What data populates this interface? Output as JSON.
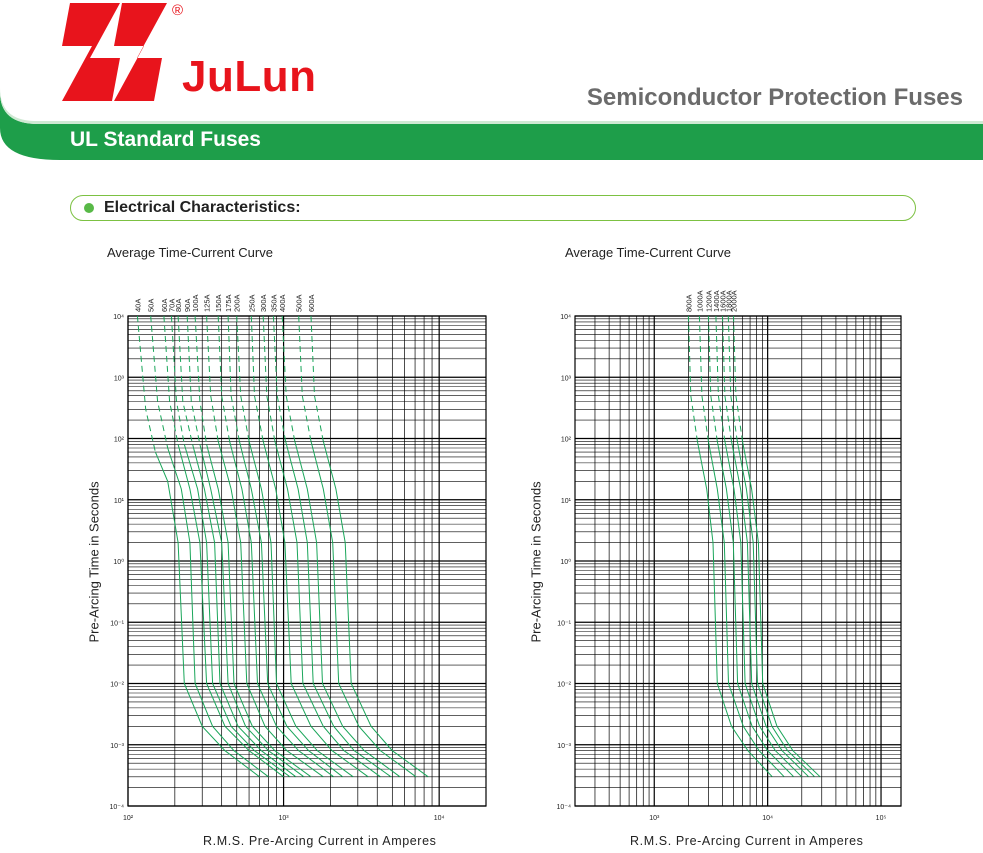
{
  "header": {
    "brand": "JuLun",
    "registered": "®",
    "title": "Semiconductor Protection Fuses",
    "section": "UL Standard Fuses",
    "colors": {
      "brand_red": "#e8141c",
      "band_green": "#1e9e4a",
      "pill_green": "#7cc142"
    }
  },
  "characteristics": {
    "label": "Electrical Characteristics:"
  },
  "chart_data": [
    {
      "type": "line",
      "title": "Average Time-Current Curve",
      "xlabel": "R.M.S. Pre-Arcing Current in Amperes",
      "ylabel": "Pre-Arcing Time in Seconds",
      "xscale": "log",
      "yscale": "log",
      "xlim": [
        100,
        20000
      ],
      "ylim": [
        0.0001,
        10000
      ],
      "xticks": [
        "10²",
        "10³",
        "10⁴"
      ],
      "yticks": [
        "10⁴",
        "10³",
        "10²",
        "10¹",
        "10⁰",
        "10⁻¹",
        "10⁻²",
        "10⁻³",
        "10⁻⁴"
      ],
      "grid": true,
      "curve_color": "#1aa65a",
      "series": [
        {
          "name": "40A",
          "x": [
            115,
            130,
            150,
            180,
            210,
            230,
            300,
            420,
            700
          ],
          "y": [
            10000,
            300,
            60,
            20,
            2,
            0.01,
            0.002,
            0.0008,
            0.0003
          ]
        },
        {
          "name": "50A",
          "x": [
            140,
            155,
            180,
            220,
            250,
            270,
            350,
            480,
            800
          ],
          "y": [
            10000,
            400,
            70,
            15,
            2,
            0.01,
            0.002,
            0.0008,
            0.0003
          ]
        },
        {
          "name": "60A",
          "x": [
            170,
            185,
            210,
            250,
            290,
            320,
            420,
            600,
            1000
          ],
          "y": [
            10000,
            400,
            80,
            15,
            2,
            0.01,
            0.002,
            0.0008,
            0.0003
          ]
        },
        {
          "name": "70A",
          "x": [
            190,
            205,
            230,
            280,
            320,
            350,
            460,
            650,
            1100
          ],
          "y": [
            10000,
            400,
            80,
            15,
            2,
            0.01,
            0.002,
            0.0008,
            0.0003
          ]
        },
        {
          "name": "80A",
          "x": [
            210,
            225,
            260,
            310,
            360,
            390,
            510,
            720,
            1200
          ],
          "y": [
            10000,
            400,
            80,
            15,
            2,
            0.01,
            0.002,
            0.0008,
            0.0003
          ]
        },
        {
          "name": "90A",
          "x": [
            240,
            255,
            290,
            340,
            400,
            440,
            570,
            800,
            1350
          ],
          "y": [
            10000,
            400,
            80,
            15,
            2,
            0.01,
            0.002,
            0.0008,
            0.0003
          ]
        },
        {
          "name": "100A",
          "x": [
            270,
            290,
            320,
            380,
            440,
            480,
            630,
            880,
            1500
          ],
          "y": [
            10000,
            400,
            80,
            15,
            2,
            0.01,
            0.002,
            0.0008,
            0.0003
          ]
        },
        {
          "name": "125A",
          "x": [
            320,
            340,
            380,
            460,
            530,
            580,
            760,
            1050,
            1800
          ],
          "y": [
            10000,
            500,
            90,
            15,
            2,
            0.01,
            0.002,
            0.0008,
            0.0003
          ]
        },
        {
          "name": "150A",
          "x": [
            380,
            400,
            450,
            540,
            620,
            680,
            900,
            1250,
            2100
          ],
          "y": [
            10000,
            500,
            90,
            15,
            2,
            0.01,
            0.002,
            0.0008,
            0.0003
          ]
        },
        {
          "name": "175A",
          "x": [
            440,
            460,
            520,
            620,
            720,
            790,
            1050,
            1450,
            2400
          ],
          "y": [
            10000,
            500,
            90,
            15,
            2,
            0.01,
            0.002,
            0.0008,
            0.0003
          ]
        },
        {
          "name": "200A",
          "x": [
            500,
            530,
            600,
            720,
            830,
            900,
            1200,
            1650,
            2800
          ],
          "y": [
            10000,
            500,
            90,
            15,
            2,
            0.01,
            0.002,
            0.0008,
            0.0003
          ]
        },
        {
          "name": "250A",
          "x": [
            620,
            650,
            740,
            890,
            1020,
            1120,
            1500,
            2050,
            3500
          ],
          "y": [
            10000,
            500,
            90,
            15,
            2,
            0.01,
            0.002,
            0.0008,
            0.0003
          ]
        },
        {
          "name": "300A",
          "x": [
            740,
            780,
            880,
            1060,
            1220,
            1330,
            1800,
            2450,
            4200
          ],
          "y": [
            10000,
            500,
            90,
            15,
            2,
            0.01,
            0.002,
            0.0008,
            0.0003
          ]
        },
        {
          "name": "350A",
          "x": [
            860,
            910,
            1030,
            1240,
            1420,
            1550,
            2100,
            2850,
            4900
          ],
          "y": [
            10000,
            500,
            90,
            15,
            2,
            0.01,
            0.002,
            0.0008,
            0.0003
          ]
        },
        {
          "name": "400A",
          "x": [
            980,
            1040,
            1180,
            1420,
            1630,
            1780,
            2400,
            3300,
            5600
          ],
          "y": [
            10000,
            500,
            90,
            15,
            2,
            0.01,
            0.002,
            0.0008,
            0.0003
          ]
        },
        {
          "name": "500A",
          "x": [
            1250,
            1320,
            1500,
            1800,
            2070,
            2260,
            3050,
            4200,
            7100
          ],
          "y": [
            10000,
            500,
            90,
            15,
            2,
            0.01,
            0.002,
            0.0008,
            0.0003
          ]
        },
        {
          "name": "600A",
          "x": [
            1500,
            1580,
            1800,
            2170,
            2490,
            2720,
            3650,
            5000,
            8500
          ],
          "y": [
            10000,
            500,
            90,
            15,
            2,
            0.01,
            0.002,
            0.0008,
            0.0003
          ]
        }
      ]
    },
    {
      "type": "line",
      "title": "Average Time-Current Curve",
      "xlabel": "R.M.S. Pre-Arcing Current in Amperes",
      "ylabel": "Pre-Arcing Time in Seconds",
      "xscale": "log",
      "yscale": "log",
      "xlim": [
        200,
        150000
      ],
      "ylim": [
        0.0001,
        10000
      ],
      "xticks": [
        "10³",
        "10⁴",
        "10⁵"
      ],
      "yticks": [
        "10⁴",
        "10³",
        "10²",
        "10¹",
        "10⁰",
        "10⁻¹",
        "10⁻²",
        "10⁻³",
        "10⁻⁴"
      ],
      "grid": true,
      "curve_color": "#1aa65a",
      "series": [
        {
          "name": "800A",
          "x": [
            2000,
            2100,
            2400,
            2900,
            3300,
            3600,
            4800,
            6700,
            11000
          ],
          "y": [
            10000,
            500,
            90,
            15,
            2,
            0.01,
            0.002,
            0.0008,
            0.0003
          ]
        },
        {
          "name": "1000A",
          "x": [
            2500,
            2630,
            3000,
            3600,
            4150,
            4520,
            6100,
            8400,
            14000
          ],
          "y": [
            10000,
            500,
            90,
            15,
            2,
            0.01,
            0.002,
            0.0008,
            0.0003
          ]
        },
        {
          "name": "1200A",
          "x": [
            3000,
            3150,
            3600,
            4330,
            4980,
            5430,
            7300,
            10000,
            17000
          ],
          "y": [
            10000,
            500,
            90,
            15,
            2,
            0.01,
            0.002,
            0.0008,
            0.0003
          ]
        },
        {
          "name": "1400A",
          "x": [
            3500,
            3680,
            4200,
            5050,
            5800,
            6330,
            8500,
            11700,
            20000
          ],
          "y": [
            10000,
            500,
            90,
            15,
            2,
            0.01,
            0.002,
            0.0008,
            0.0003
          ]
        },
        {
          "name": "1600A",
          "x": [
            4000,
            4200,
            4800,
            5770,
            6630,
            7230,
            9700,
            13400,
            23000
          ],
          "y": [
            10000,
            500,
            90,
            15,
            2,
            0.01,
            0.002,
            0.0008,
            0.0003
          ]
        },
        {
          "name": "1800A",
          "x": [
            4500,
            4730,
            5400,
            6500,
            7460,
            8140,
            10900,
            15000,
            26000
          ],
          "y": [
            10000,
            500,
            90,
            15,
            2,
            0.01,
            0.002,
            0.0008,
            0.0003
          ]
        },
        {
          "name": "2000A",
          "x": [
            5000,
            5250,
            6000,
            7220,
            8290,
            9040,
            12100,
            16700,
            29000
          ],
          "y": [
            10000,
            500,
            90,
            15,
            2,
            0.01,
            0.002,
            0.0008,
            0.0003
          ]
        }
      ]
    }
  ]
}
